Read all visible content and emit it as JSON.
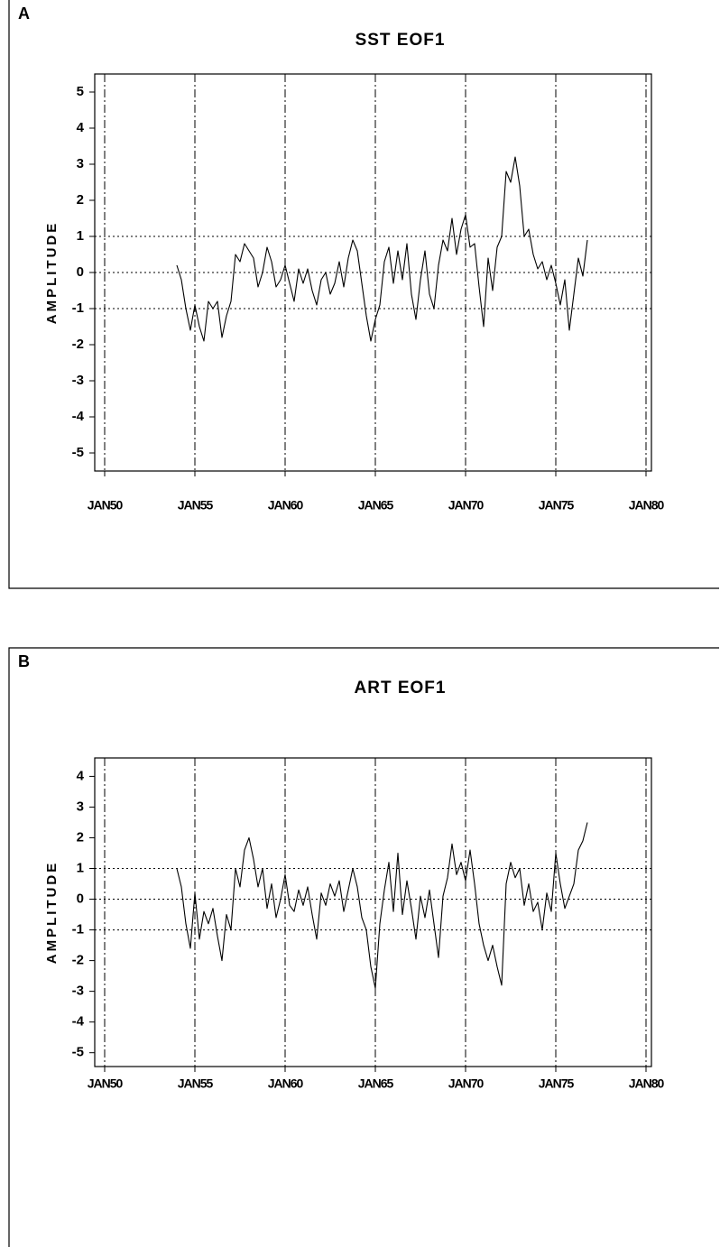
{
  "chart_data": [
    {
      "type": "line",
      "panel_label": "A",
      "title": "SST EOF1",
      "ylabel": "AMPLITUDE",
      "color": "#000000",
      "x": [
        1954,
        1954.25,
        1954.5,
        1954.75,
        1955,
        1955.25,
        1955.5,
        1955.75,
        1956,
        1956.25,
        1956.5,
        1956.75,
        1957,
        1957.25,
        1957.5,
        1957.75,
        1958,
        1958.25,
        1958.5,
        1958.75,
        1959,
        1959.25,
        1959.5,
        1959.75,
        1960,
        1960.25,
        1960.5,
        1960.75,
        1961,
        1961.25,
        1961.5,
        1961.75,
        1962,
        1962.25,
        1962.5,
        1962.75,
        1963,
        1963.25,
        1963.5,
        1963.75,
        1964,
        1964.25,
        1964.5,
        1964.75,
        1965,
        1965.25,
        1965.5,
        1965.75,
        1966,
        1966.25,
        1966.5,
        1966.75,
        1967,
        1967.25,
        1967.5,
        1967.75,
        1968,
        1968.25,
        1968.5,
        1968.75,
        1969,
        1969.25,
        1969.5,
        1969.75,
        1970,
        1970.25,
        1970.5,
        1970.75,
        1971,
        1971.25,
        1971.5,
        1971.75,
        1972,
        1972.25,
        1972.5,
        1972.75,
        1973,
        1973.25,
        1973.5,
        1973.75,
        1974,
        1974.25,
        1974.5,
        1974.75,
        1975,
        1975.25,
        1975.5,
        1975.75,
        1976,
        1976.25,
        1976.5,
        1976.75
      ],
      "values": [
        0.2,
        -0.2,
        -1.0,
        -1.6,
        -0.9,
        -1.5,
        -1.9,
        -0.8,
        -1.0,
        -0.8,
        -1.8,
        -1.2,
        -0.8,
        0.5,
        0.3,
        0.8,
        0.6,
        0.4,
        -0.4,
        0.0,
        0.7,
        0.3,
        -0.4,
        -0.2,
        0.2,
        -0.3,
        -0.8,
        0.1,
        -0.3,
        0.1,
        -0.5,
        -0.9,
        -0.2,
        0.0,
        -0.6,
        -0.3,
        0.3,
        -0.4,
        0.4,
        0.9,
        0.6,
        -0.3,
        -1.2,
        -1.9,
        -1.3,
        -0.9,
        0.3,
        0.7,
        -0.3,
        0.6,
        -0.2,
        0.8,
        -0.6,
        -1.3,
        -0.2,
        0.6,
        -0.6,
        -1.0,
        0.2,
        0.9,
        0.6,
        1.5,
        0.5,
        1.2,
        1.6,
        0.7,
        0.8,
        -0.4,
        -1.5,
        0.4,
        -0.5,
        0.7,
        1.0,
        2.8,
        2.5,
        3.2,
        2.4,
        1.0,
        1.2,
        0.5,
        0.1,
        0.3,
        -0.2,
        0.2,
        -0.3,
        -0.9,
        -0.2,
        -1.6,
        -0.6,
        0.4,
        -0.1,
        0.9
      ],
      "xlim": [
        1949.45,
        1980.3
      ],
      "ylim": [
        -5.5,
        5.5
      ],
      "xticks": [
        {
          "value": 1950,
          "label": "JAN50"
        },
        {
          "value": 1955,
          "label": "JAN55"
        },
        {
          "value": 1960,
          "label": "JAN60"
        },
        {
          "value": 1965,
          "label": "JAN65"
        },
        {
          "value": 1970,
          "label": "JAN70"
        },
        {
          "value": 1975,
          "label": "JAN75"
        },
        {
          "value": 1980,
          "label": "JAN80"
        }
      ],
      "yticks": [
        -5,
        -4,
        -3,
        -2,
        -1,
        0,
        1,
        2,
        3,
        4,
        5
      ],
      "xgrid": true,
      "hlines": [
        1,
        0,
        -1
      ]
    },
    {
      "type": "line",
      "panel_label": "B",
      "title": "ART EOF1",
      "ylabel": "AMPLITUDE",
      "color": "#000000",
      "x": [
        1954,
        1954.25,
        1954.5,
        1954.75,
        1955,
        1955.25,
        1955.5,
        1955.75,
        1956,
        1956.25,
        1956.5,
        1956.75,
        1957,
        1957.25,
        1957.5,
        1957.75,
        1958,
        1958.25,
        1958.5,
        1958.75,
        1959,
        1959.25,
        1959.5,
        1959.75,
        1960,
        1960.25,
        1960.5,
        1960.75,
        1961,
        1961.25,
        1961.5,
        1961.75,
        1962,
        1962.25,
        1962.5,
        1962.75,
        1963,
        1963.25,
        1963.5,
        1963.75,
        1964,
        1964.25,
        1964.5,
        1964.75,
        1965,
        1965.25,
        1965.5,
        1965.75,
        1966,
        1966.25,
        1966.5,
        1966.75,
        1967,
        1967.25,
        1967.5,
        1967.75,
        1968,
        1968.25,
        1968.5,
        1968.75,
        1969,
        1969.25,
        1969.5,
        1969.75,
        1970,
        1970.25,
        1970.5,
        1970.75,
        1971,
        1971.25,
        1971.5,
        1971.75,
        1972,
        1972.25,
        1972.5,
        1972.75,
        1973,
        1973.25,
        1973.5,
        1973.75,
        1974,
        1974.25,
        1974.5,
        1974.75,
        1975,
        1975.25,
        1975.5,
        1975.75,
        1976,
        1976.25,
        1976.5,
        1976.75
      ],
      "values": [
        1.0,
        0.4,
        -0.8,
        -1.6,
        0.2,
        -1.3,
        -0.4,
        -0.8,
        -0.3,
        -1.2,
        -2.0,
        -0.5,
        -1.0,
        1.0,
        0.4,
        1.6,
        2.0,
        1.3,
        0.4,
        1.0,
        -0.3,
        0.5,
        -0.6,
        0.0,
        0.8,
        -0.2,
        -0.4,
        0.3,
        -0.2,
        0.4,
        -0.5,
        -1.3,
        0.2,
        -0.2,
        0.5,
        0.1,
        0.6,
        -0.4,
        0.3,
        1.0,
        0.4,
        -0.6,
        -1.0,
        -2.2,
        -2.9,
        -0.8,
        0.3,
        1.2,
        -0.4,
        1.5,
        -0.5,
        0.6,
        -0.3,
        -1.3,
        0.1,
        -0.6,
        0.3,
        -0.8,
        -1.9,
        0.1,
        0.7,
        1.8,
        0.8,
        1.2,
        0.6,
        1.6,
        0.5,
        -0.8,
        -1.5,
        -2.0,
        -1.5,
        -2.2,
        -2.8,
        0.5,
        1.2,
        0.7,
        1.0,
        -0.2,
        0.5,
        -0.4,
        -0.1,
        -1.0,
        0.2,
        -0.4,
        1.5,
        0.5,
        -0.3,
        0.1,
        0.5,
        1.6,
        1.9,
        2.5
      ],
      "xlim": [
        1949.45,
        1980.3
      ],
      "ylim": [
        -5.45,
        4.6
      ],
      "xticks": [
        {
          "value": 1950,
          "label": "JAN50"
        },
        {
          "value": 1955,
          "label": "JAN55"
        },
        {
          "value": 1960,
          "label": "JAN60"
        },
        {
          "value": 1965,
          "label": "JAN65"
        },
        {
          "value": 1970,
          "label": "JAN70"
        },
        {
          "value": 1975,
          "label": "JAN75"
        },
        {
          "value": 1980,
          "label": "JAN80"
        }
      ],
      "yticks": [
        -5,
        -4,
        -3,
        -2,
        -1,
        0,
        1,
        2,
        3,
        4
      ],
      "xgrid": true,
      "hlines": [
        1,
        0,
        -1
      ]
    }
  ]
}
